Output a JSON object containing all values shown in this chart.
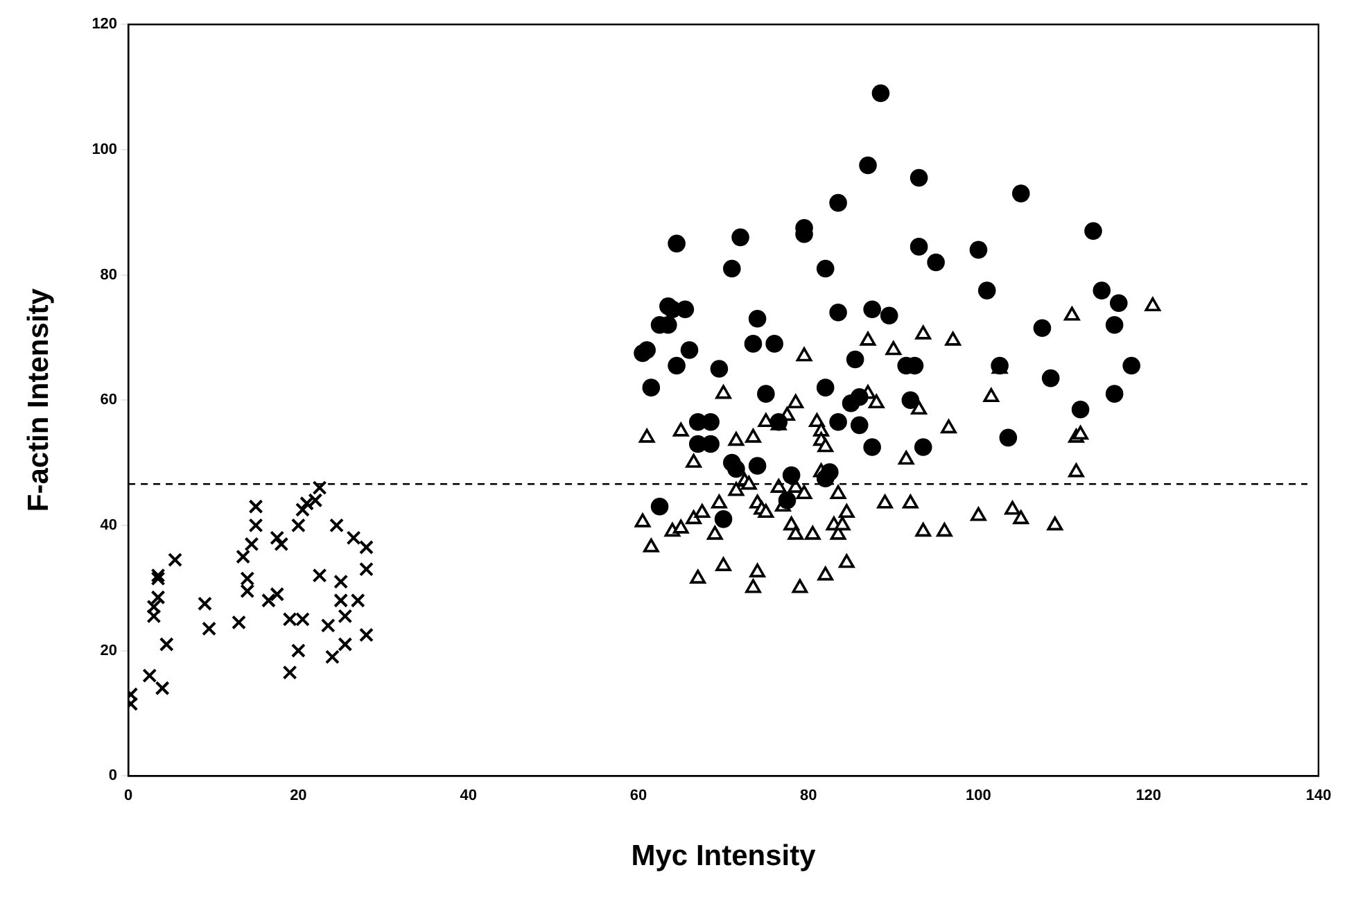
{
  "chart_data": {
    "type": "scatter",
    "xlabel": "Myc Intensity",
    "ylabel": "F-actin Intensity",
    "xlim": [
      0,
      140
    ],
    "ylim": [
      0,
      120
    ],
    "xticks": [
      0,
      20,
      40,
      60,
      80,
      100,
      120,
      140
    ],
    "yticks": [
      0,
      20,
      40,
      60,
      80,
      100,
      120
    ],
    "grid": false,
    "legend": false,
    "ref_lines": [
      {
        "axis": "y",
        "value": 46.6,
        "line_style": "dashed",
        "color": "#000000"
      }
    ],
    "series": [
      {
        "color": "#000000",
        "marker": "circle",
        "x": [
          88.5,
          87,
          83.5,
          93,
          105,
          79.5,
          79.5,
          72,
          64.5,
          71,
          82,
          93,
          95,
          100,
          113.5,
          62.5,
          63.5,
          64,
          63.5,
          65.5,
          64.5,
          66,
          60.5,
          61,
          61.5,
          69.5,
          74,
          73.5,
          76,
          83.5,
          87.5,
          89.5,
          101,
          114.5,
          116.5,
          107.5,
          116,
          108.5,
          118,
          116,
          112,
          103.5,
          102.5,
          91.5,
          92.5,
          85.5,
          82,
          86,
          85,
          86,
          92,
          75,
          76.5,
          67,
          68.5,
          67,
          68.5,
          83.5,
          87.5,
          93.5,
          71,
          71.5,
          74,
          78,
          82.5,
          82,
          62.5,
          70,
          77.5
        ],
        "values": [
          109,
          97.5,
          91.5,
          95.5,
          93,
          87.5,
          86.5,
          86,
          85,
          81,
          81,
          84.5,
          82,
          84,
          87,
          72,
          75,
          74.5,
          72,
          74.5,
          65.5,
          68,
          67.5,
          68,
          62,
          65,
          73,
          69,
          69,
          74,
          74.5,
          73.5,
          77.5,
          77.5,
          75.5,
          71.5,
          72,
          63.5,
          65.5,
          61,
          58.5,
          54,
          65.5,
          65.5,
          65.5,
          66.5,
          62,
          60.5,
          59.5,
          56,
          60,
          61,
          56.5,
          56.5,
          56.5,
          53,
          53,
          56.5,
          52.5,
          52.5,
          50,
          49,
          49.5,
          48,
          48.5,
          47.5,
          43,
          41,
          44
        ]
      },
      {
        "color": "#000000",
        "marker": "triangle",
        "x": [
          61,
          65,
          66.5,
          70,
          73.5,
          75,
          71.5,
          76.5,
          77.5,
          79.5,
          78.5,
          81,
          81.5,
          81.5,
          82,
          87,
          87,
          88,
          90,
          93.5,
          97,
          93,
          96.5,
          91.5,
          101.5,
          102.5,
          111,
          120.5,
          111.5,
          112,
          111.5,
          72.5,
          71.5,
          73,
          74,
          74.5,
          75,
          78.5,
          79.5,
          81.5,
          83.5,
          60.5,
          61.5,
          64,
          65,
          66.5,
          67.5,
          67,
          69,
          69.5,
          70,
          73.5,
          74,
          76.5,
          77,
          78,
          78.5,
          79,
          80.5,
          82,
          83,
          83.5,
          84.5,
          84,
          84.5,
          89,
          93.5,
          92,
          96,
          100,
          104,
          105,
          109
        ],
        "values": [
          54,
          55,
          50,
          61,
          54,
          56.5,
          53.5,
          56,
          57.5,
          67,
          59.5,
          56.5,
          55,
          53.5,
          52.5,
          69.5,
          61,
          59.5,
          68,
          70.5,
          69.5,
          58.5,
          55.5,
          50.5,
          60.5,
          65,
          73.5,
          75,
          54,
          54.5,
          48.5,
          47,
          45.5,
          46.5,
          43.5,
          42.5,
          42,
          46,
          45,
          48.5,
          45,
          40.5,
          36.5,
          39,
          39.5,
          41,
          42,
          31.5,
          38.5,
          43.5,
          33.5,
          30,
          32.5,
          46,
          43,
          40,
          38.5,
          30,
          38.5,
          32,
          40,
          38.5,
          34,
          40,
          42,
          43.5,
          39,
          43.5,
          39,
          41.5,
          42.5,
          41,
          40
        ]
      },
      {
        "color": "#000000",
        "marker": "cross",
        "x": [
          0.3,
          0.3,
          2.5,
          4,
          4.5,
          3,
          3,
          3.5,
          3.5,
          3.5,
          5.5,
          9,
          9.5,
          13,
          13.5,
          14,
          14,
          14.5,
          15,
          15,
          16.5,
          17.5,
          17.5,
          18,
          19,
          19,
          20,
          20.5,
          20,
          20.5,
          21,
          22,
          22.5,
          22.5,
          23.5,
          24,
          24.5,
          25,
          25,
          25.5,
          25.5,
          26.5,
          27,
          28,
          28,
          28
        ],
        "values": [
          13,
          11.5,
          16,
          14,
          21,
          25.5,
          27,
          28.5,
          31.5,
          32,
          34.5,
          27.5,
          23.5,
          24.5,
          35,
          31.5,
          29.5,
          37,
          40,
          43,
          28,
          29,
          38,
          37,
          25,
          16.5,
          20,
          25,
          40,
          42.5,
          43.5,
          44,
          46,
          32,
          24,
          19,
          40,
          31,
          28,
          25.5,
          21,
          38,
          28,
          36.5,
          33,
          22.5
        ]
      }
    ]
  }
}
